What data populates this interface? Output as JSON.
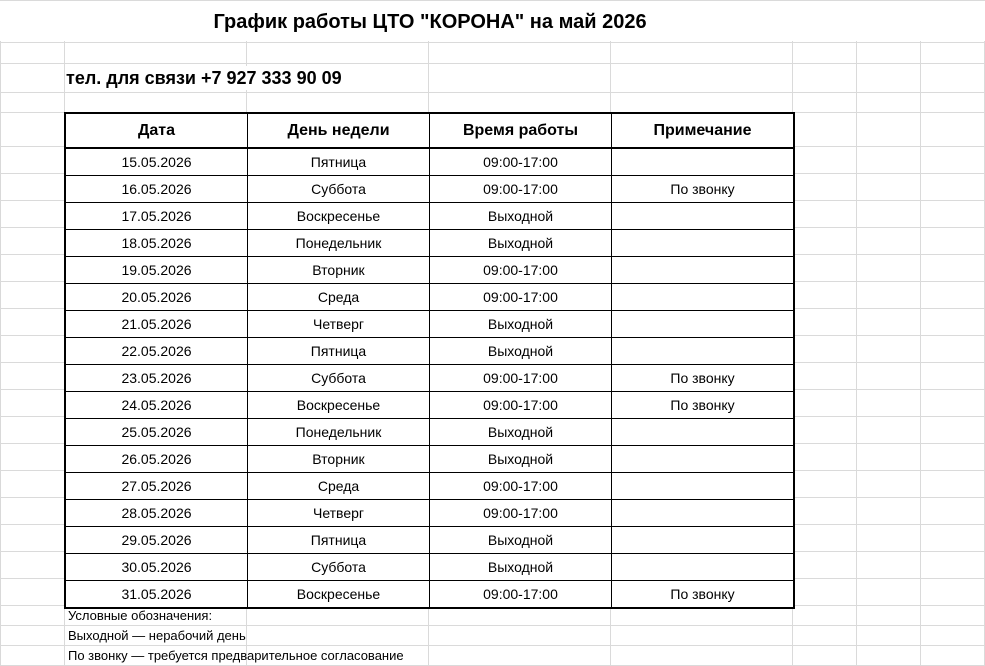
{
  "sheet": {
    "title": "График работы ЦТО \"КОРОНА\" на май 2026",
    "phone": "тел. для связи +7 927 333 90 09"
  },
  "table": {
    "headers": [
      "Дата",
      "День недели",
      "Время работы",
      "Примечание"
    ],
    "rows": [
      {
        "date": "15.05.2026",
        "day": "Пятница",
        "hours": "09:00-17:00",
        "note": ""
      },
      {
        "date": "16.05.2026",
        "day": "Суббота",
        "hours": "09:00-17:00",
        "note": "По звонку"
      },
      {
        "date": "17.05.2026",
        "day": "Воскресенье",
        "hours": "Выходной",
        "note": ""
      },
      {
        "date": "18.05.2026",
        "day": "Понедельник",
        "hours": "Выходной",
        "note": ""
      },
      {
        "date": "19.05.2026",
        "day": "Вторник",
        "hours": "09:00-17:00",
        "note": ""
      },
      {
        "date": "20.05.2026",
        "day": "Среда",
        "hours": "09:00-17:00",
        "note": ""
      },
      {
        "date": "21.05.2026",
        "day": "Четверг",
        "hours": "Выходной",
        "note": ""
      },
      {
        "date": "22.05.2026",
        "day": "Пятница",
        "hours": "Выходной",
        "note": ""
      },
      {
        "date": "23.05.2026",
        "day": "Суббота",
        "hours": "09:00-17:00",
        "note": "По звонку"
      },
      {
        "date": "24.05.2026",
        "day": "Воскресенье",
        "hours": "09:00-17:00",
        "note": "По звонку"
      },
      {
        "date": "25.05.2026",
        "day": "Понедельник",
        "hours": "Выходной",
        "note": ""
      },
      {
        "date": "26.05.2026",
        "day": "Вторник",
        "hours": "Выходной",
        "note": ""
      },
      {
        "date": "27.05.2026",
        "day": "Среда",
        "hours": "09:00-17:00",
        "note": ""
      },
      {
        "date": "28.05.2026",
        "day": "Четверг",
        "hours": "09:00-17:00",
        "note": ""
      },
      {
        "date": "29.05.2026",
        "day": "Пятница",
        "hours": "Выходной",
        "note": ""
      },
      {
        "date": "30.05.2026",
        "day": "Суббота",
        "hours": "Выходной",
        "note": ""
      },
      {
        "date": "31.05.2026",
        "day": "Воскресенье",
        "hours": "09:00-17:00",
        "note": "По звонку"
      }
    ]
  },
  "legend": {
    "heading": "Условные обозначения:",
    "items": [
      "Выходной — нерабочий день",
      "По звонку — требуется предварительное согласование"
    ]
  },
  "colors": {
    "gridline": "#dadada",
    "border": "#000000",
    "background": "#ffffff"
  }
}
